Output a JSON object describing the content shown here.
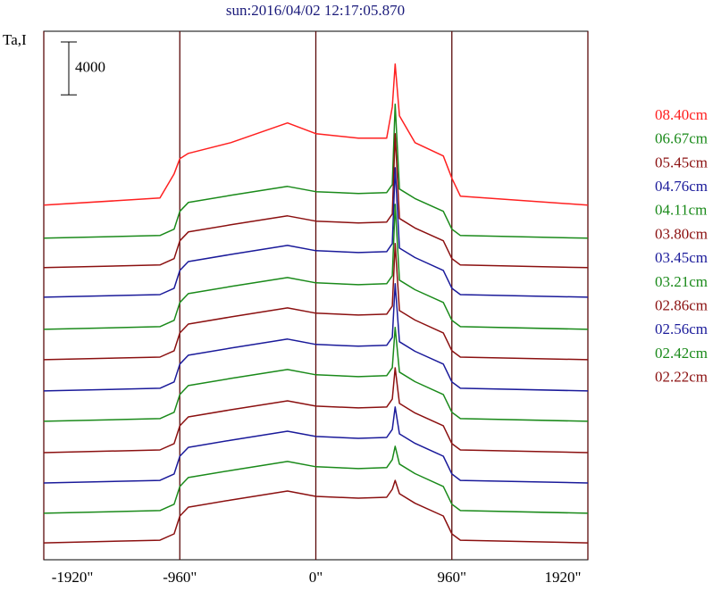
{
  "chart_data": {
    "type": "line",
    "title": "sun:2016/04/02 12:17:05.870",
    "y_label": "Ta,I",
    "scale_bar": 4000,
    "x": [
      -1920,
      -1100,
      -1000,
      -960,
      -900,
      -600,
      -200,
      0,
      300,
      500,
      540,
      560,
      590,
      700,
      900,
      960,
      1020,
      1920
    ],
    "xlim": [
      -1920,
      1920
    ],
    "xticks": [
      {
        "value": -1920,
        "label": "-1920\""
      },
      {
        "value": -960,
        "label": "-960\""
      },
      {
        "value": 0,
        "label": "0\""
      },
      {
        "value": 960,
        "label": "960\""
      },
      {
        "value": 1920,
        "label": "1920\""
      }
    ],
    "ylim": [
      0,
      40000
    ],
    "grid": true,
    "series": [
      {
        "name": "08.40cm",
        "color": "#ff2020",
        "values": [
          26840,
          27380,
          29210,
          30360,
          30760,
          31570,
          33060,
          32250,
          31910,
          31910,
          34280,
          37520,
          33600,
          31570,
          30560,
          28870,
          27520,
          26840
        ]
      },
      {
        "name": "06.67cm",
        "color": "#1a8a1a",
        "values": [
          24340,
          24540,
          25020,
          26370,
          27040,
          27580,
          28260,
          27860,
          27720,
          27790,
          28400,
          34480,
          28060,
          27340,
          26370,
          25020,
          24540,
          24340
        ]
      },
      {
        "name": "05.45cm",
        "color": "#8b1010",
        "values": [
          22110,
          22310,
          22790,
          24140,
          24810,
          25350,
          26030,
          25630,
          25490,
          25560,
          26170,
          32250,
          25830,
          25110,
          24140,
          22790,
          22310,
          22110
        ]
      },
      {
        "name": "04.76cm",
        "color": "#1a1a9a",
        "values": [
          19870,
          20070,
          20550,
          21900,
          22570,
          23110,
          23790,
          23390,
          23250,
          23320,
          23930,
          29670,
          23590,
          22870,
          21900,
          20550,
          20070,
          19870
        ]
      },
      {
        "name": "04.11cm",
        "color": "#1a8a1a",
        "values": [
          17440,
          17640,
          18120,
          19470,
          20140,
          20680,
          21360,
          20960,
          20820,
          20890,
          21500,
          26900,
          21160,
          20440,
          19470,
          18120,
          17640,
          17440
        ]
      },
      {
        "name": "03.80cm",
        "color": "#8b1010",
        "values": [
          15140,
          15340,
          15820,
          17170,
          17840,
          18380,
          19060,
          18660,
          18520,
          18590,
          19200,
          23930,
          18860,
          18140,
          17170,
          15820,
          15340,
          15140
        ]
      },
      {
        "name": "03.45cm",
        "color": "#1a1a9a",
        "values": [
          12780,
          12980,
          13460,
          14810,
          15480,
          16020,
          16700,
          16300,
          16160,
          16230,
          16840,
          20890,
          16500,
          15780,
          14810,
          13460,
          12980,
          12780
        ]
      },
      {
        "name": "03.21cm",
        "color": "#1a8a1a",
        "values": [
          10480,
          10680,
          11160,
          12510,
          13180,
          13720,
          14400,
          14000,
          13860,
          13930,
          14540,
          17580,
          14200,
          13480,
          12510,
          11160,
          10680,
          10480
        ]
      },
      {
        "name": "02.86cm",
        "color": "#8b1010",
        "values": [
          8110,
          8310,
          8790,
          10140,
          10810,
          11350,
          12030,
          11630,
          11490,
          11560,
          12170,
          14530,
          11830,
          11110,
          10140,
          8790,
          8310,
          8110
        ]
      },
      {
        "name": "02.56cm",
        "color": "#1a1a9a",
        "values": [
          5810,
          6010,
          6490,
          7840,
          8510,
          9050,
          9730,
          9330,
          9190,
          9260,
          9870,
          11560,
          9530,
          8810,
          7840,
          6490,
          6010,
          5810
        ]
      },
      {
        "name": "02.42cm",
        "color": "#1a8a1a",
        "values": [
          3520,
          3720,
          4200,
          5550,
          6220,
          6760,
          7440,
          7040,
          6900,
          6970,
          7580,
          8590,
          7240,
          6520,
          5550,
          4200,
          3720,
          3520
        ]
      },
      {
        "name": "02.22cm",
        "color": "#8b1010",
        "values": [
          1280,
          1480,
          1960,
          3310,
          3980,
          4520,
          5200,
          4800,
          4660,
          4730,
          5340,
          6010,
          5000,
          4280,
          3310,
          1960,
          1480,
          1280
        ]
      }
    ]
  }
}
